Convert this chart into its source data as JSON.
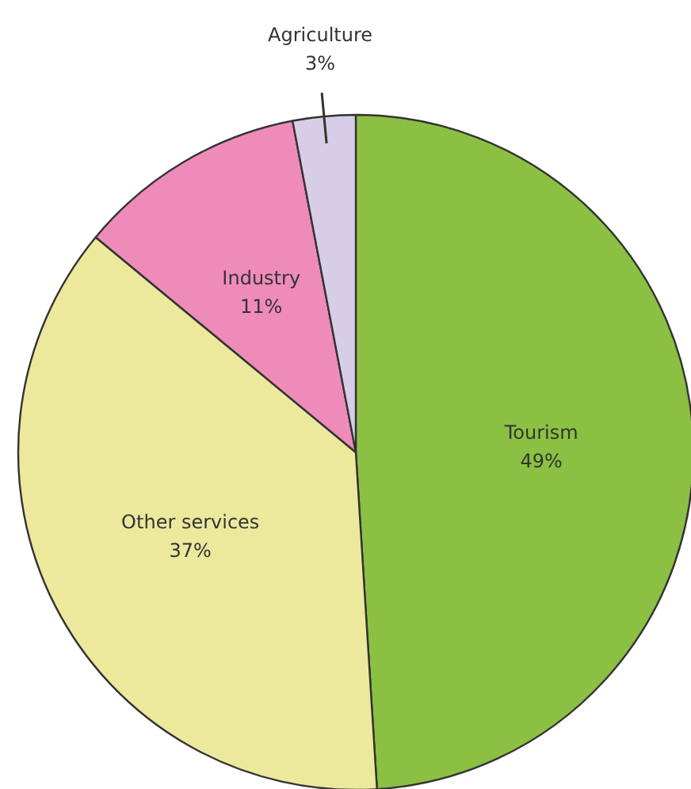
{
  "chart_data": {
    "type": "pie",
    "categories": [
      "Tourism",
      "Other services",
      "Industry",
      "Agriculture"
    ],
    "values": [
      49,
      37,
      11,
      3
    ],
    "value_labels": [
      "49%",
      "37%",
      "11%",
      "3%"
    ],
    "colors": [
      "#8bc043",
      "#ece99d",
      "#ef8bb9",
      "#d7cde6"
    ]
  }
}
